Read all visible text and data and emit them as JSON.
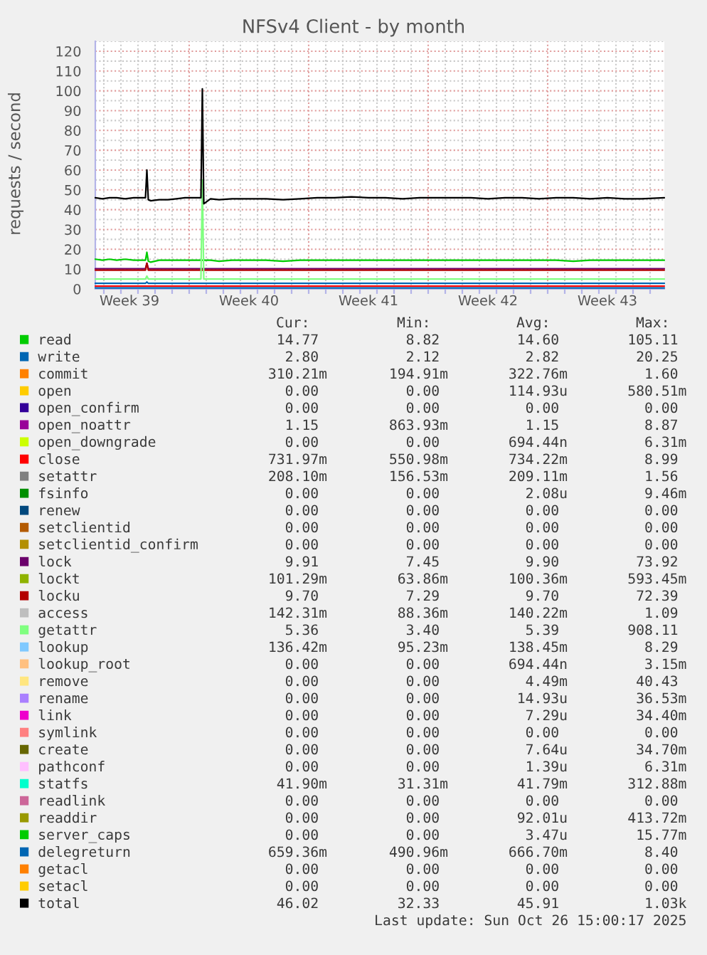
{
  "chart_data": {
    "type": "line",
    "title": "NFSv4 Client - by month",
    "ylabel": "requests / second",
    "x": [
      "2025-09-23T12:00",
      "2025-10-26T20:00"
    ],
    "series": [
      {
        "name": "read",
        "color": "#00cc00",
        "x": [
          "2025-09-23T12:00",
          "2025-09-23T22:00",
          "2025-09-24T08:00",
          "2025-09-24T18:00",
          "2025-09-25T06:00",
          "2025-09-25T18:00",
          "2025-09-26T06:00",
          "2025-09-26T10:30",
          "2025-09-26T12:30",
          "2025-09-26T14:30",
          "2025-09-26T18:00",
          "2025-09-27T06:00",
          "2025-09-27T18:00",
          "2025-09-28T06:00",
          "2025-09-28T18:00",
          "2025-09-29T06:00",
          "2025-09-29T16:30",
          "2025-09-29T18:30",
          "2025-09-29T20:30",
          "2025-09-30T06:00",
          "2025-09-30T18:00",
          "2025-10-01T12:00",
          "2025-10-02T12:00",
          "2025-10-03T12:00",
          "2025-10-04T12:00",
          "2025-10-05T12:00",
          "2025-10-06T12:00",
          "2025-10-07T12:00",
          "2025-10-08T12:00",
          "2025-10-09T12:00",
          "2025-10-10T12:00",
          "2025-10-11T12:00",
          "2025-10-12T12:00",
          "2025-10-13T12:00",
          "2025-10-14T12:00",
          "2025-10-15T12:00",
          "2025-10-16T12:00",
          "2025-10-17T12:00",
          "2025-10-18T12:00",
          "2025-10-19T12:00",
          "2025-10-20T12:00",
          "2025-10-21T12:00",
          "2025-10-22T12:00",
          "2025-10-23T12:00",
          "2025-10-24T12:00",
          "2025-10-25T12:00",
          "2025-10-26T20:00"
        ],
        "values": [
          15,
          14.5,
          15,
          14.5,
          15,
          14.5,
          14.5,
          14.5,
          18.5,
          14,
          13.5,
          14.5,
          14.5,
          14.5,
          14.5,
          14.5,
          14.5,
          14.5,
          14.5,
          14.5,
          14,
          14.5,
          14.5,
          14.5,
          14,
          14.5,
          14.5,
          14.5,
          14.5,
          14.5,
          14.5,
          14.5,
          14.5,
          14.5,
          14.5,
          14.5,
          14.5,
          14.5,
          14.5,
          14.5,
          14.5,
          14,
          14.5,
          14.5,
          14.5,
          14.5,
          14.5
        ]
      },
      {
        "name": "write",
        "color": "#0066b3",
        "x": [
          "2025-09-23T12:00",
          "2025-09-26T10:30",
          "2025-09-26T12:30",
          "2025-09-26T14:30",
          "2025-10-26T20:00"
        ],
        "values": [
          2.8,
          2.8,
          3.5,
          2.8,
          2.8
        ]
      },
      {
        "name": "commit",
        "color": "#ff8000",
        "values": [
          null,
          null
        ]
      },
      {
        "name": "open",
        "color": "#ffcc00",
        "values": [
          null,
          null
        ]
      },
      {
        "name": "open_confirm",
        "color": "#330099",
        "values": [
          null,
          null
        ]
      },
      {
        "name": "open_noattr",
        "color": "#990099",
        "values": [
          null,
          null
        ]
      },
      {
        "name": "open_downgrade",
        "color": "#ccff00",
        "values": [
          null,
          null
        ]
      },
      {
        "name": "close",
        "color": "#ff0000",
        "values": [
          1.4,
          1.4
        ]
      },
      {
        "name": "setattr",
        "color": "#808080",
        "values": [
          null,
          null
        ]
      },
      {
        "name": "fsinfo",
        "color": "#008f00",
        "values": [
          null,
          null
        ]
      },
      {
        "name": "renew",
        "color": "#00487d",
        "values": [
          null,
          null
        ]
      },
      {
        "name": "setclientid",
        "color": "#b35a00",
        "values": [
          null,
          null
        ]
      },
      {
        "name": "setclientid_confirm",
        "color": "#b38f00",
        "values": [
          null,
          null
        ]
      },
      {
        "name": "lock",
        "color": "#6b006b",
        "x": [
          "2025-09-23T12:00",
          "2025-09-26T10:30",
          "2025-09-26T12:30",
          "2025-09-26T14:30",
          "2025-10-26T20:00"
        ],
        "values": [
          10.2,
          10.2,
          13,
          10.2,
          10.2
        ]
      },
      {
        "name": "lockt",
        "color": "#8fb300",
        "values": [
          null,
          null
        ]
      },
      {
        "name": "locku",
        "color": "#b30000",
        "x": [
          "2025-09-23T12:00",
          "2025-09-26T10:30",
          "2025-09-26T12:30",
          "2025-09-26T14:30",
          "2025-10-26T20:00"
        ],
        "values": [
          9.5,
          9.5,
          13,
          9.5,
          9.5
        ]
      },
      {
        "name": "access",
        "color": "#bebebe",
        "values": [
          null,
          null
        ]
      },
      {
        "name": "getattr",
        "color": "#80ff80",
        "x": [
          "2025-09-23T12:00",
          "2025-09-26T10:30",
          "2025-09-26T12:30",
          "2025-09-26T14:30",
          "2025-09-29T16:30",
          "2025-09-29T18:30",
          "2025-09-29T20:30",
          "2025-10-26T20:00"
        ],
        "values": [
          5,
          5,
          6.5,
          5,
          5,
          55,
          5,
          5
        ]
      },
      {
        "name": "lookup",
        "color": "#80c9ff",
        "values": [
          null,
          null
        ]
      },
      {
        "name": "lookup_root",
        "color": "#ffc080",
        "values": [
          null,
          null
        ]
      },
      {
        "name": "remove",
        "color": "#ffe680",
        "values": [
          null,
          null
        ]
      },
      {
        "name": "rename",
        "color": "#aa80ff",
        "values": [
          null,
          null
        ]
      },
      {
        "name": "link",
        "color": "#ee00cc",
        "values": [
          null,
          null
        ]
      },
      {
        "name": "symlink",
        "color": "#ff8080",
        "values": [
          null,
          null
        ]
      },
      {
        "name": "create",
        "color": "#666600",
        "values": [
          null,
          null
        ]
      },
      {
        "name": "pathconf",
        "color": "#ffbfff",
        "values": [
          null,
          null
        ]
      },
      {
        "name": "statfs",
        "color": "#00ffcc",
        "values": [
          null,
          null
        ]
      },
      {
        "name": "readlink",
        "color": "#cc6699",
        "values": [
          null,
          null
        ]
      },
      {
        "name": "readdir",
        "color": "#999900",
        "values": [
          null,
          null
        ]
      },
      {
        "name": "server_caps",
        "color": "#00cc00",
        "values": [
          null,
          null
        ]
      },
      {
        "name": "delegreturn",
        "color": "#0066b3",
        "values": [
          0.5,
          0.5
        ]
      },
      {
        "name": "getacl",
        "color": "#ff8000",
        "values": [
          null,
          null
        ]
      },
      {
        "name": "setacl",
        "color": "#ffcc00",
        "values": [
          null,
          null
        ]
      },
      {
        "name": "total",
        "color": "#000000",
        "x": [
          "2025-09-23T12:00",
          "2025-09-23T22:00",
          "2025-09-24T08:00",
          "2025-09-24T18:00",
          "2025-09-25T06:00",
          "2025-09-25T18:00",
          "2025-09-26T06:00",
          "2025-09-26T10:30",
          "2025-09-26T12:30",
          "2025-09-26T14:30",
          "2025-09-26T18:00",
          "2025-09-27T06:00",
          "2025-09-27T18:00",
          "2025-09-28T06:00",
          "2025-09-28T18:00",
          "2025-09-29T06:00",
          "2025-09-29T16:30",
          "2025-09-29T18:30",
          "2025-09-29T20:30",
          "2025-09-30T06:00",
          "2025-09-30T18:00",
          "2025-10-01T12:00",
          "2025-10-02T12:00",
          "2025-10-03T12:00",
          "2025-10-04T12:00",
          "2025-10-05T12:00",
          "2025-10-06T12:00",
          "2025-10-07T12:00",
          "2025-10-08T12:00",
          "2025-10-09T12:00",
          "2025-10-10T12:00",
          "2025-10-11T12:00",
          "2025-10-12T12:00",
          "2025-10-13T12:00",
          "2025-10-14T12:00",
          "2025-10-15T12:00",
          "2025-10-16T12:00",
          "2025-10-17T12:00",
          "2025-10-18T12:00",
          "2025-10-19T12:00",
          "2025-10-20T12:00",
          "2025-10-21T12:00",
          "2025-10-22T12:00",
          "2025-10-23T12:00",
          "2025-10-24T12:00",
          "2025-10-25T12:00",
          "2025-10-26T20:00"
        ],
        "values": [
          46,
          45.5,
          46,
          46,
          45.5,
          46,
          46,
          46,
          60,
          45,
          44.5,
          45,
          45,
          45.5,
          46,
          46,
          46,
          101,
          43,
          45.5,
          45,
          45.5,
          45.5,
          45.5,
          45,
          45.5,
          46,
          46,
          46.5,
          46,
          46,
          45.5,
          46,
          46,
          46,
          46,
          45.5,
          46,
          46,
          45.5,
          46,
          46,
          45.5,
          46,
          45.5,
          45.5,
          46
        ]
      }
    ],
    "xlim": [
      "2025-09-23T12:00",
      "2025-10-26T20:00"
    ],
    "ylim": [
      0,
      125
    ],
    "xticks": [
      {
        "value": "2025-09-24T00:00",
        "label": null
      },
      {
        "value": "2025-09-25T00:00",
        "label": null
      },
      {
        "value": "2025-09-25T12:00",
        "label": "Week 39"
      },
      {
        "value": "2025-09-26T00:00",
        "label": null
      },
      {
        "value": "2025-09-27T00:00",
        "label": null
      },
      {
        "value": "2025-09-28T00:00",
        "label": null
      },
      {
        "value": "2025-09-29T00:00",
        "label": null
      },
      {
        "value": "2025-09-30T00:00",
        "label": null
      },
      {
        "value": "2025-10-01T00:00",
        "label": null
      },
      {
        "value": "2025-10-02T00:00",
        "label": null
      },
      {
        "value": "2025-10-02T12:00",
        "label": "Week 40"
      },
      {
        "value": "2025-10-03T00:00",
        "label": null
      },
      {
        "value": "2025-10-04T00:00",
        "label": null
      },
      {
        "value": "2025-10-05T00:00",
        "label": null
      },
      {
        "value": "2025-10-06T00:00",
        "label": null
      },
      {
        "value": "2025-10-07T00:00",
        "label": null
      },
      {
        "value": "2025-10-08T00:00",
        "label": null
      },
      {
        "value": "2025-10-09T00:00",
        "label": null
      },
      {
        "value": "2025-10-09T12:00",
        "label": "Week 41"
      },
      {
        "value": "2025-10-10T00:00",
        "label": null
      },
      {
        "value": "2025-10-11T00:00",
        "label": null
      },
      {
        "value": "2025-10-12T00:00",
        "label": null
      },
      {
        "value": "2025-10-13T00:00",
        "label": null
      },
      {
        "value": "2025-10-14T00:00",
        "label": null
      },
      {
        "value": "2025-10-15T00:00",
        "label": null
      },
      {
        "value": "2025-10-16T00:00",
        "label": null
      },
      {
        "value": "2025-10-16T12:00",
        "label": "Week 42"
      },
      {
        "value": "2025-10-17T00:00",
        "label": null
      },
      {
        "value": "2025-10-18T00:00",
        "label": null
      },
      {
        "value": "2025-10-19T00:00",
        "label": null
      },
      {
        "value": "2025-10-20T00:00",
        "label": null
      },
      {
        "value": "2025-10-21T00:00",
        "label": null
      },
      {
        "value": "2025-10-22T00:00",
        "label": null
      },
      {
        "value": "2025-10-23T00:00",
        "label": null
      },
      {
        "value": "2025-10-23T12:00",
        "label": "Week 43"
      },
      {
        "value": "2025-10-24T00:00",
        "label": null
      },
      {
        "value": "2025-10-25T00:00",
        "label": null
      },
      {
        "value": "2025-10-26T00:00",
        "label": null
      }
    ],
    "yticks": [
      0,
      {
        "value": 5,
        "label": null
      },
      10,
      {
        "value": 15,
        "label": null
      },
      20,
      {
        "value": 25,
        "label": null
      },
      30,
      {
        "value": 35,
        "label": null
      },
      40,
      {
        "value": 45,
        "label": null
      },
      50,
      {
        "value": 55,
        "label": null
      },
      60,
      {
        "value": 65,
        "label": null
      },
      70,
      {
        "value": 75,
        "label": null
      },
      80,
      {
        "value": 85,
        "label": null
      },
      90,
      {
        "value": 95,
        "label": null
      },
      100,
      {
        "value": 105,
        "label": null
      },
      110,
      {
        "value": 115,
        "label": null
      },
      120,
      {
        "value": 125,
        "label": null
      }
    ],
    "grid": true,
    "legend": "bottom",
    "annotations": [
      "Cur:",
      "Min:",
      "Avg:",
      "Max:",
      "14.77",
      "8.82",
      "14.60",
      "105.11",
      "2.80",
      "2.12",
      "2.82",
      "20.25",
      "310.21m",
      "194.91m",
      "322.76m",
      "1.60",
      "0.00",
      "0.00",
      "114.93u",
      "580.51m",
      "0.00",
      "0.00",
      "0.00",
      "0.00",
      "1.15",
      "863.93m",
      "1.15",
      "8.87",
      "0.00",
      "0.00",
      "694.44n",
      "6.31m",
      "731.97m",
      "550.98m",
      "734.22m",
      "8.99",
      "208.10m",
      "156.53m",
      "209.11m",
      "1.56",
      "0.00",
      "0.00",
      "2.08u",
      "9.46m",
      "0.00",
      "0.00",
      "0.00",
      "0.00",
      "0.00",
      "0.00",
      "0.00",
      "0.00",
      "0.00",
      "0.00",
      "0.00",
      "0.00",
      "9.91",
      "7.45",
      "9.90",
      "73.92",
      "101.29m",
      "63.86m",
      "100.36m",
      "593.45m",
      "9.70",
      "7.29",
      "9.70",
      "72.39",
      "142.31m",
      "88.36m",
      "140.22m",
      "1.09",
      "5.36",
      "3.40",
      "5.39",
      "908.11",
      "136.42m",
      "95.23m",
      "138.45m",
      "8.29",
      "0.00",
      "0.00",
      "694.44n",
      "3.15m",
      "0.00",
      "0.00",
      "4.49m",
      "40.43",
      "0.00",
      "0.00",
      "14.93u",
      "36.53m",
      "0.00",
      "0.00",
      "7.29u",
      "34.40m",
      "0.00",
      "0.00",
      "0.00",
      "0.00",
      "0.00",
      "0.00",
      "7.64u",
      "34.70m",
      "0.00",
      "0.00",
      "1.39u",
      "6.31m",
      "41.90m",
      "31.31m",
      "41.79m",
      "312.88m",
      "0.00",
      "0.00",
      "0.00",
      "0.00",
      "0.00",
      "0.00",
      "92.01u",
      "413.72m",
      "0.00",
      "0.00",
      "3.47u",
      "15.77m",
      "659.36m",
      "490.96m",
      "666.70m",
      "8.40",
      "0.00",
      "0.00",
      "0.00",
      "0.00",
      "0.00",
      "0.00",
      "0.00",
      "0.00",
      "46.02",
      "32.33",
      "45.91",
      "1.03k",
      "Last update: Sun Oct 26 15:00:17 2025"
    ]
  }
}
